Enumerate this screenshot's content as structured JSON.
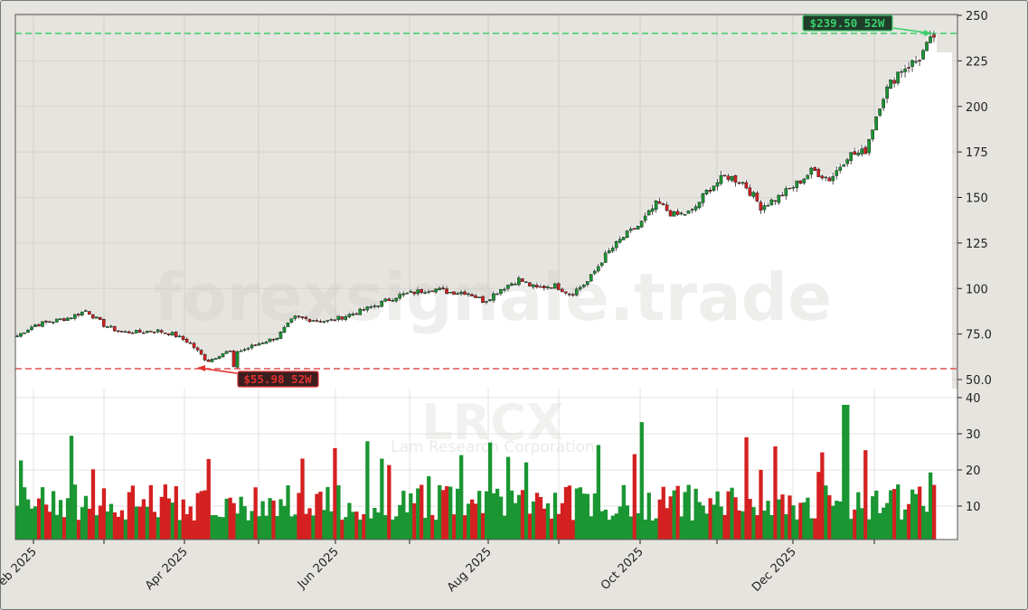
{
  "chart_data": {
    "type": "candlestick",
    "ticker": "LRCX",
    "company": "Lam Research Corporation",
    "watermark": "forexsignale.trade",
    "x_tick_labels": [
      "Feb 2025",
      "Apr 2025",
      "Jun 2025",
      "Aug 2025",
      "Oct 2025",
      "Dec 2025"
    ],
    "price_axis": {
      "ticks": [
        "250",
        "225",
        "200",
        "175",
        "150",
        "125",
        "100",
        "75.0",
        "50.0"
      ],
      "range": [
        50,
        250
      ]
    },
    "volume_axis": {
      "ticks": [
        "40",
        "30",
        "20",
        "10"
      ],
      "range": [
        0,
        42
      ],
      "unit": "millions (approx.)"
    },
    "annotations": {
      "high_52w": {
        "label": "$239.50 52W",
        "value": 239.5,
        "color": "#2ecc71"
      },
      "low_52w": {
        "label": "$55.98 52W",
        "value": 55.98,
        "color": "#e03030"
      }
    },
    "colors": {
      "up": "#1a9632",
      "down": "#d42020",
      "background": "#e6e4df",
      "plot_bg": "#ffffff"
    },
    "approx_weekly_close": [
      {
        "date": "2025-01-20",
        "close": 74
      },
      {
        "date": "2025-01-27",
        "close": 80
      },
      {
        "date": "2025-02-03",
        "close": 82
      },
      {
        "date": "2025-02-10",
        "close": 84
      },
      {
        "date": "2025-02-17",
        "close": 88
      },
      {
        "date": "2025-02-24",
        "close": 80
      },
      {
        "date": "2025-03-03",
        "close": 76
      },
      {
        "date": "2025-03-10",
        "close": 76
      },
      {
        "date": "2025-03-17",
        "close": 77
      },
      {
        "date": "2025-03-24",
        "close": 75
      },
      {
        "date": "2025-03-31",
        "close": 70
      },
      {
        "date": "2025-04-07",
        "close": 60
      },
      {
        "date": "2025-04-14",
        "close": 65
      },
      {
        "date": "2025-04-21",
        "close": 66
      },
      {
        "date": "2025-04-28",
        "close": 70
      },
      {
        "date": "2025-05-05",
        "close": 73
      },
      {
        "date": "2025-05-12",
        "close": 84
      },
      {
        "date": "2025-05-19",
        "close": 83
      },
      {
        "date": "2025-05-26",
        "close": 82
      },
      {
        "date": "2025-06-02",
        "close": 85
      },
      {
        "date": "2025-06-09",
        "close": 88
      },
      {
        "date": "2025-06-16",
        "close": 92
      },
      {
        "date": "2025-06-23",
        "close": 96
      },
      {
        "date": "2025-06-30",
        "close": 98
      },
      {
        "date": "2025-07-07",
        "close": 100
      },
      {
        "date": "2025-07-14",
        "close": 98
      },
      {
        "date": "2025-07-21",
        "close": 98
      },
      {
        "date": "2025-07-28",
        "close": 93
      },
      {
        "date": "2025-08-04",
        "close": 100
      },
      {
        "date": "2025-08-11",
        "close": 105
      },
      {
        "date": "2025-08-18",
        "close": 100
      },
      {
        "date": "2025-08-25",
        "close": 102
      },
      {
        "date": "2025-09-01",
        "close": 97
      },
      {
        "date": "2025-09-08",
        "close": 104
      },
      {
        "date": "2025-09-15",
        "close": 118
      },
      {
        "date": "2025-09-22",
        "close": 128
      },
      {
        "date": "2025-09-29",
        "close": 135
      },
      {
        "date": "2025-10-06",
        "close": 147
      },
      {
        "date": "2025-10-13",
        "close": 140
      },
      {
        "date": "2025-10-20",
        "close": 142
      },
      {
        "date": "2025-10-27",
        "close": 155
      },
      {
        "date": "2025-11-03",
        "close": 162
      },
      {
        "date": "2025-11-10",
        "close": 158
      },
      {
        "date": "2025-11-17",
        "close": 145
      },
      {
        "date": "2025-11-24",
        "close": 150
      },
      {
        "date": "2025-12-01",
        "close": 157
      },
      {
        "date": "2025-12-08",
        "close": 165
      },
      {
        "date": "2025-12-15",
        "close": 160
      },
      {
        "date": "2025-12-22",
        "close": 173
      },
      {
        "date": "2025-12-29",
        "close": 175
      },
      {
        "date": "2026-01-05",
        "close": 205
      },
      {
        "date": "2026-01-12",
        "close": 220
      },
      {
        "date": "2026-01-19",
        "close": 225
      },
      {
        "date": "2026-01-26",
        "close": 238
      }
    ],
    "xlabel": "",
    "ylabel": "",
    "grid": true,
    "legend": "none"
  }
}
